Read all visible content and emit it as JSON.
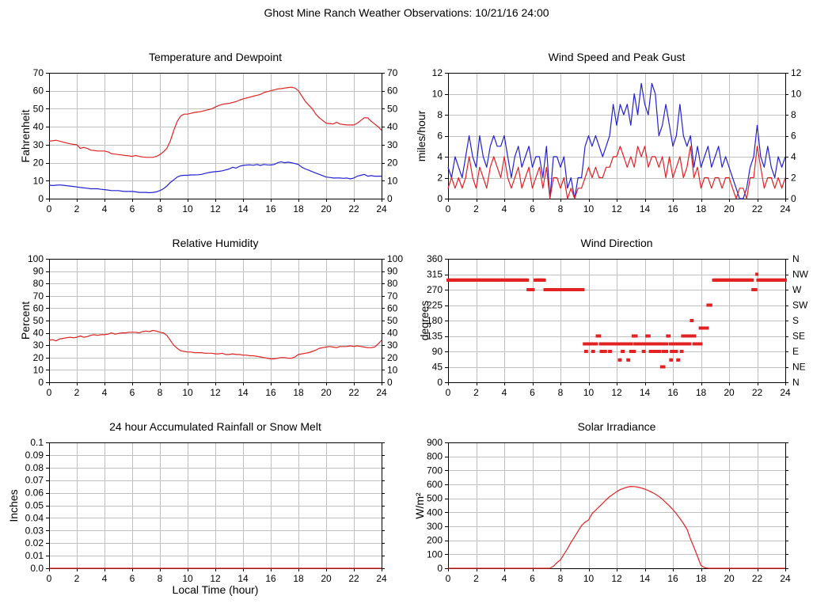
{
  "page": {
    "title": "Ghost Mine Ranch Weather Observations: 10/21/16 24:00"
  },
  "colors": {
    "red": "#e22222",
    "blue": "#2222d0",
    "grid": "#c0c0c0",
    "axis": "#000000"
  },
  "chart_data": [
    {
      "id": "temperature-dewpoint",
      "type": "line",
      "title": "Temperature and Dewpoint",
      "ylabel": "Fahrenheit",
      "ylim": [
        0,
        70
      ],
      "ytick_step": 10,
      "xlim": [
        0,
        24
      ],
      "xtick_step": 2,
      "right_axis": "mirror",
      "series": [
        {
          "name": "temperature",
          "color": "red",
          "x_start": 0,
          "x_step": 0.25,
          "values": [
            32,
            32.2,
            32.5,
            32,
            31.5,
            31,
            30.5,
            30.2,
            30,
            28,
            28.5,
            28,
            27,
            26.8,
            26.5,
            26.5,
            26.5,
            26,
            25,
            24.8,
            24.5,
            24.3,
            24,
            23.8,
            23.5,
            24,
            23.5,
            23.2,
            23,
            23,
            23,
            23.5,
            24.5,
            26,
            28,
            32,
            38,
            43,
            46,
            47,
            47,
            47.5,
            48,
            48.2,
            48.5,
            49,
            49.5,
            50,
            51,
            51.8,
            52.5,
            52.8,
            53,
            53.5,
            54,
            54.8,
            55.5,
            56,
            56.5,
            57,
            57.5,
            58,
            59,
            59.5,
            60,
            60.5,
            61,
            61.2,
            61.5,
            61.8,
            62,
            61.5,
            60,
            57,
            54,
            52,
            50,
            47,
            45,
            43.5,
            42,
            41.8,
            41.5,
            42.5,
            41.5,
            41.2,
            41,
            41,
            41,
            42,
            43.5,
            45,
            45,
            43,
            41.5,
            40,
            38
          ]
        },
        {
          "name": "dewpoint",
          "color": "blue",
          "x_start": 0,
          "x_step": 0.25,
          "values": [
            7.5,
            7.3,
            7.5,
            7.6,
            7.5,
            7.2,
            7,
            6.8,
            6.5,
            6.2,
            6,
            5.8,
            5.5,
            5.5,
            5.5,
            5.2,
            5,
            4.8,
            4.5,
            4.5,
            4.5,
            4.2,
            4,
            4,
            4,
            3.8,
            3.5,
            3.5,
            3.5,
            3.3,
            3.5,
            3.8,
            4.5,
            5.5,
            7,
            9,
            10.5,
            12,
            12.8,
            13,
            13,
            13.2,
            13.2,
            13.3,
            13.5,
            14,
            14.5,
            14.8,
            15,
            15.2,
            15.5,
            16,
            16.5,
            17.5,
            17,
            18,
            18.5,
            18.7,
            18.8,
            18.6,
            19,
            18.5,
            19,
            18.8,
            18.7,
            19,
            20,
            20.5,
            20,
            20.3,
            20,
            19.5,
            19,
            17.5,
            16.5,
            15.8,
            15,
            14.2,
            13.5,
            12.8,
            12,
            11.8,
            11.5,
            11.5,
            11.5,
            11.3,
            11.5,
            11,
            11.5,
            12.5,
            13,
            13.5,
            12.5,
            12.8,
            12.5,
            12.5,
            12.5
          ]
        }
      ]
    },
    {
      "id": "wind-speed-gust",
      "type": "line",
      "title": "Wind Speed and Peak Gust",
      "ylabel": "miles/hour",
      "ylim": [
        0,
        12
      ],
      "ytick_step": 2,
      "xlim": [
        0,
        24
      ],
      "xtick_step": 2,
      "right_axis": "mirror",
      "series": [
        {
          "name": "peak-gust",
          "color": "blue",
          "x_start": 0,
          "x_step": 0.25,
          "values": [
            3,
            2,
            4,
            3,
            2,
            4,
            6,
            4,
            3,
            6,
            4,
            3,
            5,
            6,
            5,
            5,
            6,
            4,
            2,
            4,
            5,
            3,
            4,
            5,
            3,
            4,
            4,
            2,
            5,
            0,
            4,
            4,
            3,
            4,
            1,
            2,
            0,
            2,
            2,
            5,
            6,
            5,
            6,
            5,
            4,
            5,
            6,
            9,
            7,
            9,
            8,
            9,
            7,
            10,
            8,
            11,
            9,
            8,
            11,
            10,
            6,
            7,
            9,
            7,
            5,
            6,
            9,
            6,
            5,
            6,
            3,
            5,
            3,
            4,
            5,
            3,
            4,
            5,
            3,
            4,
            3,
            2,
            1,
            0,
            0,
            1,
            3,
            4,
            7,
            4,
            3,
            5,
            3,
            2,
            4,
            3,
            4
          ]
        },
        {
          "name": "wind-speed",
          "color": "red",
          "x_start": 0,
          "x_step": 0.25,
          "values": [
            1,
            2,
            1,
            2,
            1,
            2,
            4,
            2,
            1,
            3,
            2,
            1,
            3,
            4,
            3,
            2,
            4,
            2,
            1,
            2,
            3,
            1,
            2,
            3,
            1,
            2,
            3,
            1,
            3,
            0,
            2,
            2,
            1,
            2,
            0,
            1,
            0,
            1,
            1,
            2,
            3,
            2,
            3,
            2,
            2,
            3,
            3,
            4,
            4,
            5,
            4,
            3,
            4,
            3,
            5,
            4,
            5,
            3,
            4,
            4,
            3,
            4,
            2,
            4,
            2,
            3,
            4,
            2,
            3,
            5,
            2,
            3,
            1,
            2,
            2,
            1,
            2,
            2,
            1,
            2,
            2,
            1,
            0,
            1,
            1,
            0,
            2,
            2,
            5,
            3,
            1,
            2,
            2,
            1,
            2,
            1,
            2
          ]
        }
      ]
    },
    {
      "id": "relative-humidity",
      "type": "line",
      "title": "Relative Humidity",
      "ylabel": "Percent",
      "ylim": [
        0,
        100
      ],
      "ytick_step": 10,
      "xlim": [
        0,
        24
      ],
      "xtick_step": 2,
      "right_axis": "mirror",
      "series": [
        {
          "name": "relative-humidity",
          "color": "red",
          "x_start": 0,
          "x_step": 0.25,
          "values": [
            34,
            34.5,
            33.5,
            35,
            35.5,
            36,
            36.5,
            36,
            36.5,
            37.5,
            36.5,
            37,
            38,
            38.5,
            38,
            38.5,
            38.5,
            39,
            40,
            39,
            39.5,
            40,
            40,
            40.5,
            40.5,
            40.5,
            40,
            41,
            41.5,
            41,
            42,
            41.5,
            40.5,
            40,
            38,
            34,
            30,
            27.5,
            25.5,
            25,
            24.5,
            24.5,
            24,
            24,
            24,
            23.5,
            23.5,
            23.5,
            23,
            23,
            23.5,
            22.5,
            22.5,
            23,
            22.5,
            22.5,
            22,
            22,
            21.5,
            21.5,
            21,
            20.5,
            20,
            19.5,
            19,
            19,
            19.5,
            20,
            20,
            19.5,
            19.5,
            20.5,
            22.5,
            23,
            23.5,
            24,
            25,
            26,
            27.5,
            28,
            28.5,
            29,
            28.5,
            28,
            29,
            29,
            29,
            29.5,
            29,
            29.5,
            29,
            28.5,
            28,
            28,
            28.5,
            31,
            34
          ]
        }
      ]
    },
    {
      "id": "wind-direction",
      "type": "scatter",
      "title": "Wind Direction",
      "ylabel": "degrees",
      "ylim": [
        0,
        360
      ],
      "ytick_step": 45,
      "xlim": [
        0,
        24
      ],
      "xtick_step": 2,
      "right_axis": "compass",
      "compass_labels": [
        "N",
        "NE",
        "E",
        "SE",
        "S",
        "SW",
        "W",
        "NW",
        "N"
      ],
      "series": [
        {
          "name": "wind-direction",
          "color": "red",
          "marker": "square",
          "segments": [
            [
              298,
              0,
              5.65
            ],
            [
              298,
              6.2,
              6.85
            ],
            [
              298,
              18.9,
              21.65
            ],
            [
              298,
              22.05,
              24
            ],
            [
              270,
              5.7,
              6.05
            ],
            [
              270,
              6.9,
              9.6
            ],
            [
              270,
              21.7,
              21.9
            ],
            [
              315,
              21.98,
              22.02
            ],
            [
              225,
              18.5,
              18.72
            ],
            [
              158,
              17.95,
              18.45
            ],
            [
              180,
              17.32,
              17.38
            ],
            [
              135,
              10.62,
              10.8
            ],
            [
              135,
              13.18,
              13.42
            ],
            [
              135,
              14.15,
              14.3
            ],
            [
              135,
              15.62,
              15.75
            ],
            [
              135,
              16.7,
              16.82
            ],
            [
              135,
              16.95,
              17.28
            ],
            [
              135,
              17.45,
              17.58
            ],
            [
              112,
              9.7,
              10.55
            ],
            [
              112,
              10.85,
              11.1
            ],
            [
              112,
              11.3,
              12.05
            ],
            [
              112,
              12.15,
              12.6
            ],
            [
              112,
              12.7,
              13.05
            ],
            [
              112,
              13.3,
              13.55
            ],
            [
              112,
              13.7,
              14.1
            ],
            [
              112,
              14.2,
              14.55
            ],
            [
              112,
              14.7,
              15.1
            ],
            [
              112,
              15.3,
              15.58
            ],
            [
              112,
              15.8,
              16.1
            ],
            [
              112,
              16.2,
              16.52
            ],
            [
              112,
              16.6,
              16.9
            ],
            [
              112,
              17.05,
              17.2
            ],
            [
              112,
              17.5,
              17.85
            ],
            [
              112,
              17.9,
              18.02
            ],
            [
              90,
              9.8,
              9.86
            ],
            [
              90,
              10.3,
              10.36
            ],
            [
              90,
              10.9,
              11.2
            ],
            [
              90,
              11.5,
              11.56
            ],
            [
              90,
              12.4,
              12.46
            ],
            [
              90,
              13.0,
              13.26
            ],
            [
              90,
              13.9,
              13.96
            ],
            [
              90,
              14.4,
              15.05
            ],
            [
              90,
              15.3,
              15.56
            ],
            [
              90,
              15.9,
              16.26
            ],
            [
              90,
              16.6,
              16.66
            ],
            [
              65,
              12.2,
              12.26
            ],
            [
              65,
              12.8,
              12.86
            ],
            [
              65,
              15.85,
              15.91
            ],
            [
              65,
              16.35,
              16.41
            ],
            [
              45,
              15.2,
              15.36
            ]
          ]
        }
      ]
    },
    {
      "id": "rainfall",
      "type": "line",
      "title": "24 hour Accumulated Rainfall or Snow Melt",
      "ylabel": "Inches",
      "xlabel": "Local Time (hour)",
      "ylim": [
        0,
        0.1
      ],
      "ytick_step": 0.01,
      "ytick_labels": [
        "0.0",
        "0.01",
        "0.02",
        "0.03",
        "0.04",
        "0.05",
        "0.06",
        "0.07",
        "0.08",
        "0.09",
        "0.1"
      ],
      "xlim": [
        0,
        24
      ],
      "xtick_step": 2,
      "right_axis": "none",
      "series": [
        {
          "name": "rainfall",
          "color": "red",
          "x_start": 0,
          "x_step": 24,
          "values": [
            0,
            0
          ]
        }
      ]
    },
    {
      "id": "solar-irradiance",
      "type": "line",
      "title": "Solar Irradiance",
      "ylabel": "W/m²",
      "ylim": [
        0,
        900
      ],
      "ytick_step": 100,
      "xlim": [
        0,
        24
      ],
      "xtick_step": 2,
      "right_axis": "none",
      "series": [
        {
          "name": "solar-irradiance",
          "color": "red",
          "x_start": 0,
          "x_step": 0.25,
          "values": [
            0,
            0,
            0,
            0,
            0,
            0,
            0,
            0,
            0,
            0,
            0,
            0,
            0,
            0,
            0,
            0,
            0,
            0,
            0,
            0,
            0,
            0,
            0,
            0,
            0,
            0,
            0,
            0,
            0,
            0,
            15,
            40,
            60,
            100,
            140,
            185,
            225,
            265,
            305,
            330,
            345,
            390,
            415,
            440,
            465,
            490,
            512,
            530,
            548,
            562,
            572,
            580,
            585,
            584,
            580,
            574,
            566,
            556,
            544,
            530,
            514,
            494,
            470,
            446,
            420,
            390,
            356,
            320,
            280,
            210,
            150,
            85,
            20,
            5,
            0,
            0,
            0,
            0,
            0,
            0,
            0,
            0,
            0,
            0,
            0,
            0,
            0,
            0,
            0,
            0,
            0,
            0,
            0,
            0,
            0,
            0,
            0
          ]
        }
      ]
    }
  ]
}
